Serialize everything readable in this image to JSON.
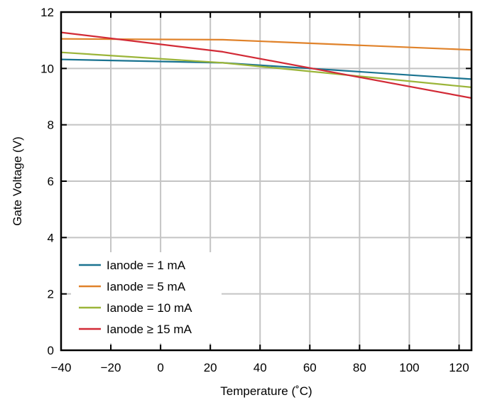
{
  "chart_data": {
    "type": "line",
    "title": "",
    "xlabel": "Temperature (˚C)",
    "ylabel": "Gate Voltage (V)",
    "xlim": [
      -40,
      125
    ],
    "ylim": [
      0,
      12
    ],
    "xticks": [
      -40,
      -20,
      0,
      20,
      40,
      60,
      80,
      100,
      120
    ],
    "xtick_labels": [
      "−40",
      "−20",
      "0",
      "20",
      "40",
      "60",
      "80",
      "100",
      "120"
    ],
    "yticks": [
      0,
      2,
      4,
      6,
      8,
      10,
      12
    ],
    "ytick_labels": [
      "0",
      "2",
      "4",
      "6",
      "8",
      "10",
      "12"
    ],
    "grid": true,
    "legend_position": "bottom-left",
    "series": [
      {
        "name": "Ianode = 1 mA",
        "color": "#1a7390",
        "x": [
          -40,
          25,
          60,
          125
        ],
        "y": [
          10.32,
          10.2,
          10.0,
          9.62
        ]
      },
      {
        "name": "Ianode = 5 mA",
        "color": "#e0822a",
        "x": [
          -40,
          25,
          125
        ],
        "y": [
          11.05,
          11.02,
          10.66
        ]
      },
      {
        "name": "Ianode = 10 mA",
        "color": "#9bb539",
        "x": [
          -40,
          25,
          125
        ],
        "y": [
          10.57,
          10.2,
          9.33
        ]
      },
      {
        "name": "Ianode ≥ 15 mA",
        "color": "#d22a36",
        "x": [
          -40,
          25,
          125
        ],
        "y": [
          11.28,
          10.59,
          8.95
        ]
      }
    ]
  }
}
